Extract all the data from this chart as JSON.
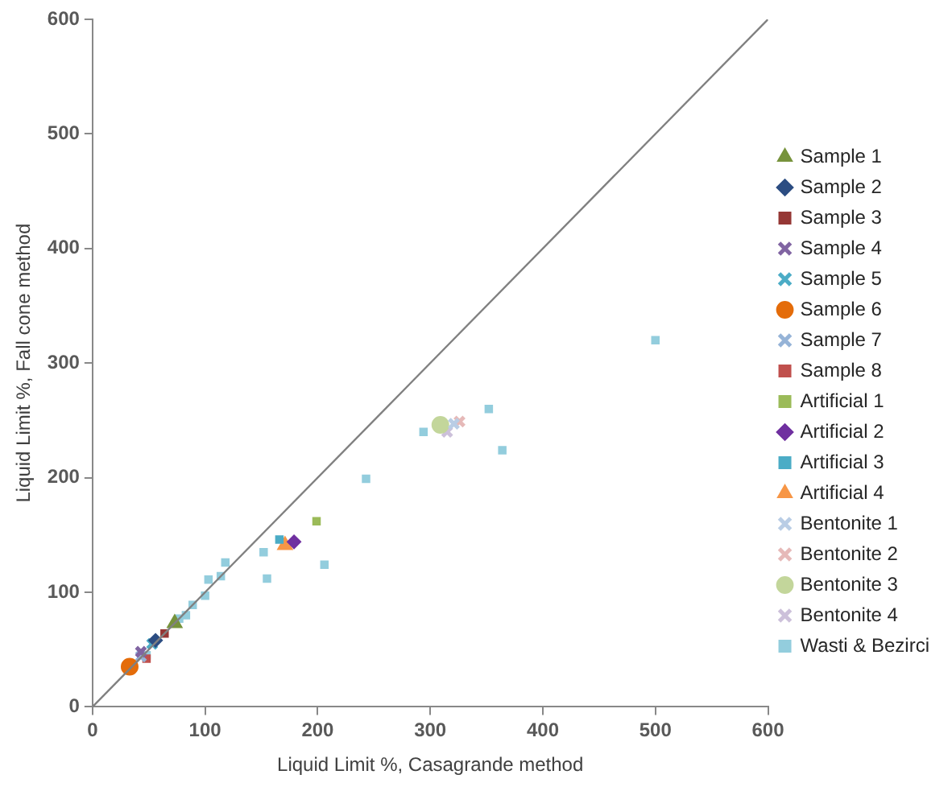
{
  "chart_data": {
    "type": "scatter",
    "xlabel": "Liquid Limit %, Casagrande method",
    "ylabel": "Liquid Limit %, Fall cone method",
    "xlim": [
      0,
      600
    ],
    "xticks": [
      0,
      100,
      200,
      300,
      400,
      500,
      600
    ],
    "ylim": [
      0,
      600
    ],
    "yticks": [
      0,
      100,
      200,
      300,
      400,
      500,
      600
    ],
    "grid": false,
    "legend": "right",
    "series": [
      {
        "type": "line",
        "color": "#808080",
        "marker": "none",
        "line_style": "solid",
        "x": [
          0,
          600
        ],
        "values": [
          0,
          600
        ]
      },
      {
        "name": "Sample 1",
        "color": "#77933c",
        "marker": "triangle",
        "x": [
          73
        ],
        "values": [
          73
        ]
      },
      {
        "name": "Sample 2",
        "color": "#2c4d82",
        "marker": "diamond",
        "x": [
          56
        ],
        "values": [
          58
        ]
      },
      {
        "name": "Sample 3",
        "color": "#953735",
        "marker": "square",
        "x": [
          64
        ],
        "values": [
          64
        ]
      },
      {
        "name": "Sample 4",
        "color": "#8064a2",
        "marker": "cross",
        "x": [
          43
        ],
        "values": [
          48
        ]
      },
      {
        "name": "Sample 5",
        "color": "#4bacc6",
        "marker": "cross",
        "x": [
          53
        ],
        "values": [
          55
        ]
      },
      {
        "name": "Sample 6",
        "color": "#e46c0a",
        "marker": "circle",
        "x": [
          33
        ],
        "values": [
          35
        ]
      },
      {
        "name": "Sample 7",
        "color": "#95b3d7",
        "marker": "cross",
        "x": [
          43
        ],
        "values": [
          44
        ]
      },
      {
        "name": "Sample 8",
        "color": "#c0504d",
        "marker": "square",
        "x": [
          48
        ],
        "values": [
          42
        ]
      },
      {
        "name": "Artificial 1",
        "color": "#9bbb59",
        "marker": "square",
        "x": [
          199
        ],
        "values": [
          162
        ]
      },
      {
        "name": "Artificial 2",
        "color": "#7030a0",
        "marker": "diamond",
        "x": [
          179
        ],
        "values": [
          144
        ]
      },
      {
        "name": "Artificial 3",
        "color": "#4bacc6",
        "marker": "square",
        "x": [
          166
        ],
        "values": [
          146
        ]
      },
      {
        "name": "Artificial 4",
        "color": "#f79646",
        "marker": "triangle",
        "x": [
          171
        ],
        "values": [
          141
        ]
      },
      {
        "name": "Bentonite 1",
        "color": "#b9cde5",
        "marker": "cross",
        "x": [
          321
        ],
        "values": [
          247
        ]
      },
      {
        "name": "Bentonite 2",
        "color": "#e6b9b8",
        "marker": "cross",
        "x": [
          326
        ],
        "values": [
          249
        ]
      },
      {
        "name": "Bentonite 3",
        "color": "#c3d69b",
        "marker": "circle",
        "x": [
          309
        ],
        "values": [
          246
        ]
      },
      {
        "name": "Bentonite 4",
        "color": "#ccc0da",
        "marker": "cross",
        "x": [
          315
        ],
        "values": [
          240
        ]
      },
      {
        "name": "Wasti & Bezirci",
        "color": "#93cddd",
        "marker": "square",
        "x": [
          48,
          77,
          83,
          89,
          100,
          103,
          114,
          118,
          152,
          155,
          206,
          243,
          294,
          352,
          364,
          500
        ],
        "values": [
          45,
          77,
          80,
          89,
          97,
          111,
          114,
          126,
          135,
          112,
          124,
          199,
          240,
          260,
          224,
          320
        ]
      }
    ]
  }
}
